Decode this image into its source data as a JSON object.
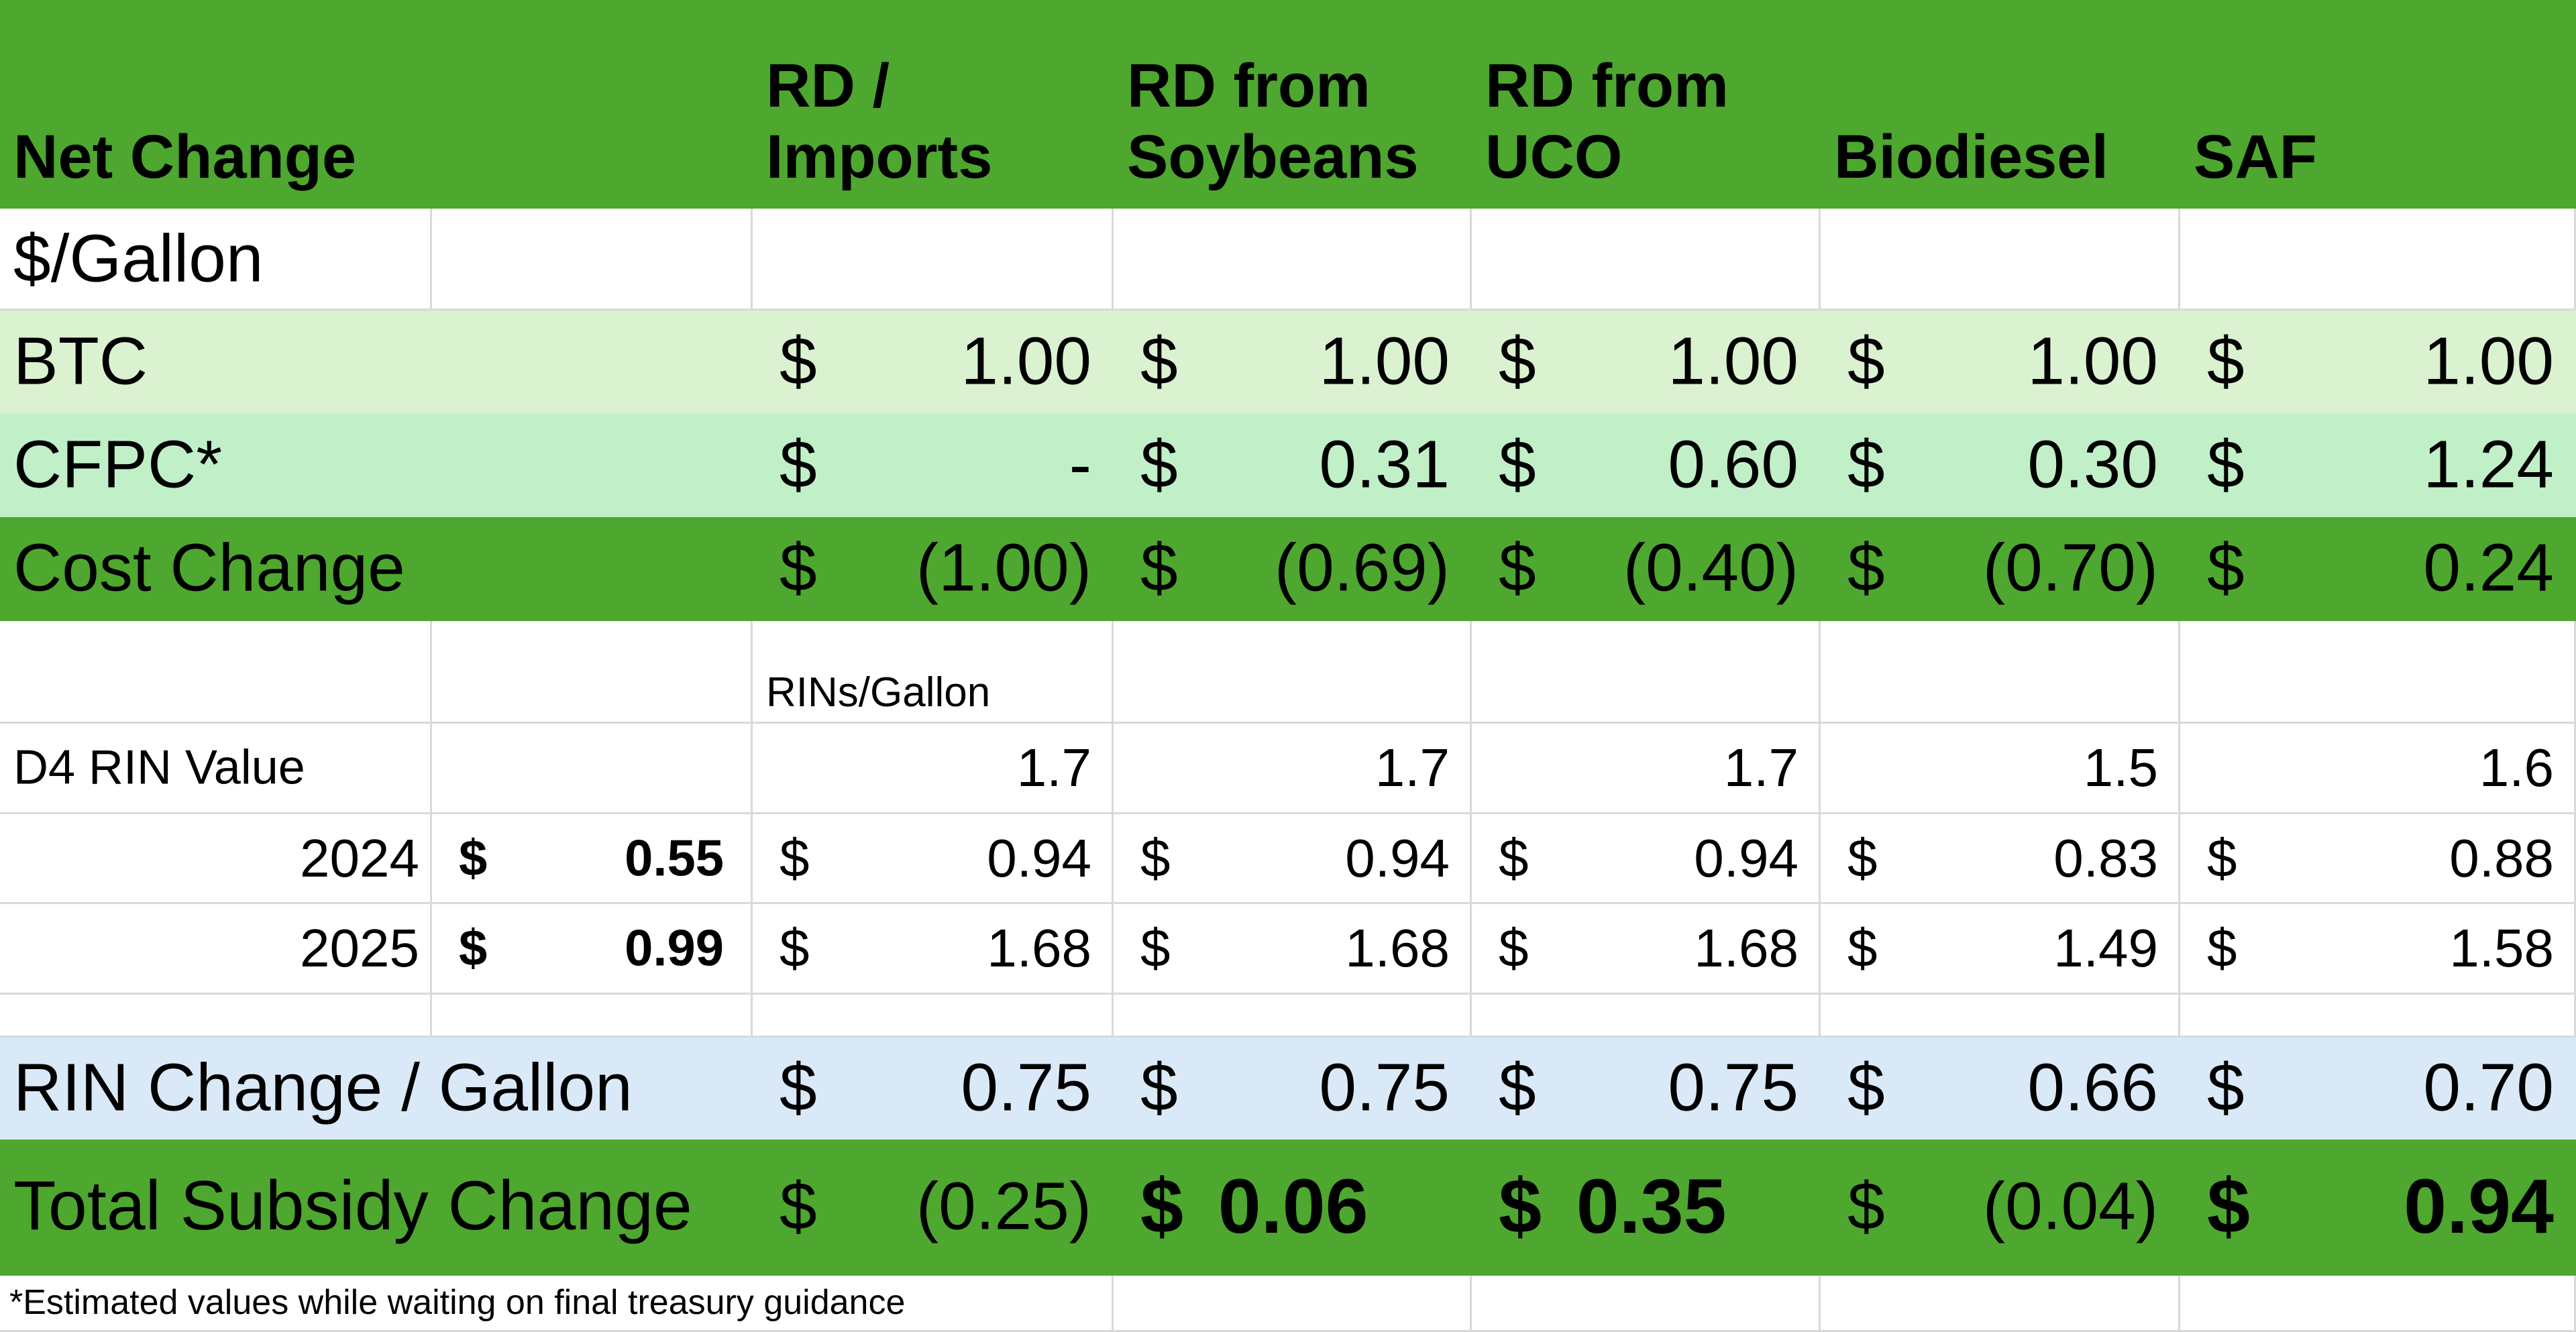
{
  "colors": {
    "header_green": "#4EA72E",
    "btc_fill": "#DAF2D0",
    "cfpc_fill": "#C1F0C8",
    "rin_change_fill": "#DAE9F8",
    "gridline": "#D9D9D9"
  },
  "header": {
    "label": "Net Change",
    "columns": [
      "RD /\nImports",
      "RD from\nSoybeans",
      "RD from\nUCO",
      "Biodiesel",
      "SAF"
    ]
  },
  "currency_symbol": "$",
  "rows": {
    "unit_label": "$/Gallon",
    "btc": {
      "label": "BTC",
      "values": [
        "1.00",
        "1.00",
        "1.00",
        "1.00",
        "1.00"
      ]
    },
    "cfpc": {
      "label": "CFPC*",
      "values": [
        "-",
        "0.31",
        "0.60",
        "0.30",
        "1.24"
      ]
    },
    "cost_change": {
      "label": "Cost Change",
      "values": [
        "(1.00)",
        "(0.69)",
        "(0.40)",
        "(0.70)",
        "0.24"
      ]
    },
    "rins_per_gallon_label": "RINs/Gallon",
    "d4_rin_value": {
      "label": "D4 RIN Value",
      "values": [
        "1.7",
        "1.7",
        "1.7",
        "1.5",
        "1.6"
      ]
    },
    "year_2024": {
      "label": "2024",
      "price": "0.55",
      "values": [
        "0.94",
        "0.94",
        "0.94",
        "0.83",
        "0.88"
      ]
    },
    "year_2025": {
      "label": "2025",
      "price": "0.99",
      "values": [
        "1.68",
        "1.68",
        "1.68",
        "1.49",
        "1.58"
      ]
    },
    "rin_change": {
      "label": "RIN Change / Gallon",
      "values": [
        "0.75",
        "0.75",
        "0.75",
        "0.66",
        "0.70"
      ]
    },
    "total_subsidy": {
      "label": "Total Subsidy Change",
      "values": [
        "(0.25)",
        "0.06",
        "0.35",
        "(0.04)",
        "0.94"
      ],
      "bold": [
        false,
        true,
        true,
        false,
        true
      ]
    }
  },
  "footnote": "*Estimated values while waiting on final treasury guidance"
}
